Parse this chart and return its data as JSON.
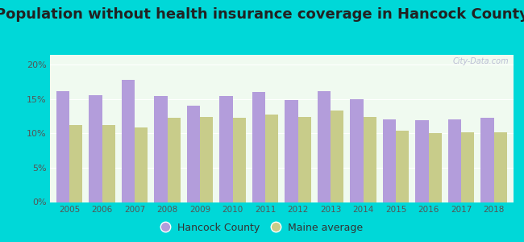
{
  "title": "Population without health insurance coverage in Hancock County",
  "years": [
    2005,
    2006,
    2007,
    2008,
    2009,
    2010,
    2011,
    2012,
    2013,
    2014,
    2015,
    2016,
    2017,
    2018
  ],
  "hancock": [
    16.1,
    15.6,
    17.8,
    15.4,
    14.0,
    15.4,
    16.0,
    14.9,
    16.1,
    15.0,
    12.1,
    11.9,
    12.1,
    12.3
  ],
  "maine": [
    11.2,
    11.2,
    10.9,
    12.3,
    12.4,
    12.3,
    12.8,
    12.4,
    13.3,
    12.4,
    10.4,
    10.1,
    10.2,
    10.2
  ],
  "hancock_color": "#b39ddb",
  "maine_color": "#c8cc8a",
  "background_outer": "#00d8d8",
  "background_inner": "#f0faf0",
  "title_fontsize": 13,
  "ylabel_ticks": [
    "0%",
    "5%",
    "10%",
    "15%",
    "20%"
  ],
  "ytick_vals": [
    0,
    5,
    10,
    15,
    20
  ],
  "ylim": [
    0,
    21.5
  ],
  "legend_hancock": "Hancock County",
  "legend_maine": "Maine average"
}
